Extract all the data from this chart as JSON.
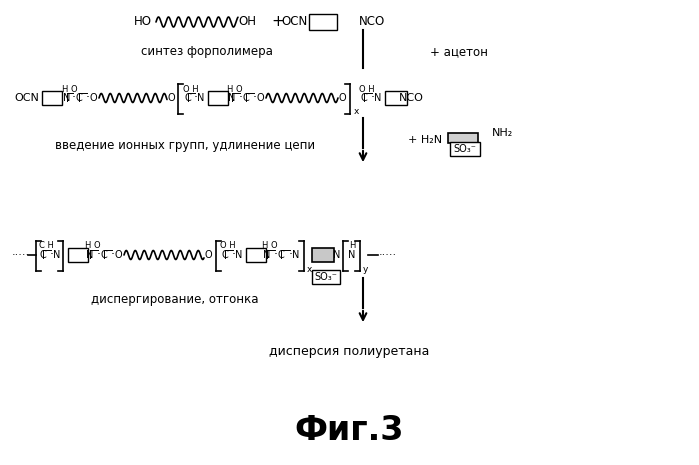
{
  "title": "Фиг.3",
  "bg_color": "#ffffff",
  "step1_label": "синтез форполимера",
  "acetone": "+ ацетон",
  "step2_label": "введение ионных групп, удлинение цепи",
  "step3_label": "диспергирование, отгонка",
  "step4_label": "дисперсия полиуретана"
}
